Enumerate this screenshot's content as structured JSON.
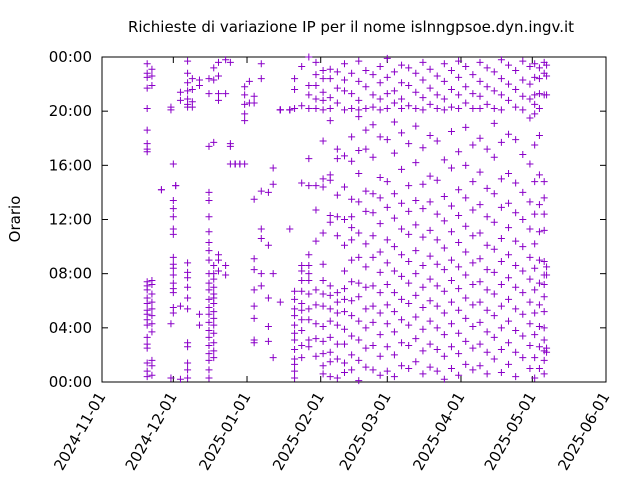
{
  "chart_data": {
    "type": "scatter",
    "title": "Richieste di variazione IP per il nome islnngpsoe.dyn.ingv.it",
    "ylabel": "Orario",
    "xlabel": "",
    "grid": false,
    "legend": "none",
    "marker": "+",
    "color": "#8a00c8",
    "x_axis": {
      "type": "date",
      "range": [
        "2024-11-01",
        "2025-06-01"
      ],
      "ticks": [
        "2024-11-01",
        "2024-12-01",
        "2025-01-01",
        "2025-02-01",
        "2025-03-01",
        "2025-04-01",
        "2025-05-01",
        "2025-06-01"
      ]
    },
    "y_axis": {
      "type": "time_of_day_hours",
      "range": [
        0,
        24
      ],
      "ticks": [
        0,
        4,
        8,
        12,
        16,
        20,
        24
      ],
      "tick_labels": [
        "00:00",
        "04:00",
        "08:00",
        "12:00",
        "16:00",
        "20:00",
        "00:00"
      ]
    },
    "clusters": [
      {
        "x": "2024-11-20",
        "y": [
          23.5,
          22.8,
          22.5,
          21.7,
          20.2,
          18.6,
          17.6,
          17.2,
          17.0,
          7.4,
          7.1,
          6.8,
          6.2,
          5.8,
          5.3,
          5.0,
          4.6,
          4.2,
          3.3,
          2.8,
          2.5,
          1.4,
          0.8,
          0.4
        ]
      },
      {
        "x": "2024-11-22",
        "y": [
          23.1,
          22.6,
          21.9,
          7.5,
          7.2,
          6.5,
          5.9,
          5.4,
          4.9,
          4.3,
          3.7,
          1.6,
          1.2,
          0.5
        ]
      },
      {
        "x": "2024-11-26",
        "y": [
          14.2,
          14.2
        ]
      },
      {
        "x": "2024-11-30",
        "y": [
          20.3,
          20.1,
          4.3,
          0.3
        ]
      },
      {
        "x": "2024-12-01",
        "y": [
          16.1,
          13.4,
          12.8,
          12.2,
          11.3,
          10.9,
          9.2,
          8.7,
          8.4,
          7.9,
          7.3,
          6.9,
          6.6,
          5.5,
          5.1
        ]
      },
      {
        "x": "2024-12-02",
        "y": [
          14.5,
          14.5
        ]
      },
      {
        "x": "2024-12-04",
        "y": [
          21.4,
          20.8,
          5.6,
          0.2
        ]
      },
      {
        "x": "2024-12-07",
        "y": [
          23.7,
          22.8,
          22.1,
          21.5,
          20.9,
          20.5,
          20.3,
          8.8,
          8.1,
          7.7,
          7.0,
          6.2,
          5.4,
          2.9,
          2.6,
          1.4,
          0.9,
          0.3
        ]
      },
      {
        "x": "2024-12-09",
        "y": [
          22.4,
          21.6,
          20.7,
          20.3
        ]
      },
      {
        "x": "2024-12-12",
        "y": [
          22.3,
          21.9,
          5.0,
          4.2
        ]
      },
      {
        "x": "2024-12-16",
        "y": [
          22.4,
          21.3,
          17.4,
          14.0,
          13.4,
          12.2,
          11.1,
          10.3,
          9.7,
          9.0,
          8.0,
          7.3,
          6.8,
          6.1,
          5.5,
          5.0,
          4.4,
          3.8,
          3.3,
          2.7,
          2.1,
          1.6,
          0.9,
          0.3
        ]
      },
      {
        "x": "2024-12-18",
        "y": [
          23.2,
          22.3,
          17.7,
          8.6,
          8.0,
          7.6,
          7.0,
          6.5,
          6.2,
          5.8,
          5.2,
          4.7,
          4.2,
          3.6,
          2.9,
          2.3,
          1.8
        ]
      },
      {
        "x": "2024-12-20",
        "y": [
          23.6,
          22.6,
          21.3,
          20.8,
          9.4,
          9.0,
          8.2
        ]
      },
      {
        "x": "2024-12-23",
        "y": [
          23.8,
          21.3,
          8.6,
          7.9
        ]
      },
      {
        "x": "2024-12-25",
        "y": [
          23.6,
          17.6,
          17.4,
          16.1
        ]
      },
      {
        "x": "2024-12-27",
        "y": [
          16.1,
          16.1,
          16.1,
          16.1
        ]
      },
      {
        "x": "2024-12-29",
        "y": [
          16.1,
          16.1,
          16.1
        ]
      },
      {
        "x": "2024-12-31",
        "y": [
          21.8,
          21.2,
          20.5,
          19.8,
          19.3,
          16.1
        ]
      },
      {
        "x": "2025-01-02",
        "y": [
          22.2,
          20.6
        ]
      },
      {
        "x": "2025-01-04",
        "y": [
          21.1,
          20.6,
          13.5,
          9.1,
          8.3,
          6.8,
          5.6,
          4.7,
          3.1,
          2.9
        ]
      },
      {
        "x": "2025-01-07",
        "y": [
          23.5,
          22.4,
          14.1,
          11.3,
          10.6,
          8.0,
          7.1
        ]
      },
      {
        "x": "2025-01-10",
        "y": [
          14.0,
          10.1,
          6.2,
          4.1,
          3.0
        ]
      },
      {
        "x": "2025-01-12",
        "y": [
          15.8,
          14.6,
          8.0,
          1.8
        ]
      },
      {
        "x": "2025-01-15",
        "y": [
          20.1,
          20.1,
          20.1,
          20.1,
          5.9
        ]
      },
      {
        "x": "2025-01-19",
        "y": [
          20.1,
          20.1,
          20.1,
          11.3
        ]
      },
      {
        "x": "2025-01-21",
        "y": [
          22.4,
          21.6,
          20.2,
          6.7,
          6.1,
          5.4,
          4.9,
          4.2,
          3.6,
          3.1,
          2.4,
          1.7,
          1.3,
          0.8,
          0.3
        ]
      },
      {
        "x": "2025-01-24",
        "y": [
          23.3,
          20.4,
          14.7,
          8.6,
          8.2,
          7.5,
          6.7,
          5.8,
          5.3,
          4.6,
          3.8,
          2.7,
          1.8
        ]
      },
      {
        "x": "2025-01-27",
        "y": [
          24.0,
          21.9,
          21.2,
          20.2,
          16.5,
          14.5,
          9.4,
          8.6,
          8.0,
          7.5,
          6.5,
          5.4,
          4.6,
          3.1,
          2.6
        ]
      },
      {
        "x": "2025-01-30",
        "y": [
          23.6,
          22.7,
          21.9,
          20.9,
          20.2,
          14.5,
          12.7,
          10.4,
          6.8,
          5.7,
          4.3,
          3.2,
          1.9
        ]
      },
      {
        "x": "2025-02-02",
        "y": [
          23.0,
          22.4,
          21.4,
          20.8,
          20.1,
          17.8,
          15.0,
          14.4,
          11.0,
          8.7,
          7.5,
          6.5,
          5.6,
          4.1,
          3.0,
          2.1,
          1.2,
          0.6
        ]
      },
      {
        "x": "2025-02-05",
        "y": [
          23.1,
          22.4,
          21.0,
          20.2,
          19.3,
          15.3,
          14.9,
          12.3,
          11.8,
          7.1,
          6.4,
          5.4,
          4.5,
          3.3,
          2.2,
          1.5,
          0.4
        ]
      },
      {
        "x": "2025-02-08",
        "y": [
          22.9,
          21.7,
          20.6,
          17.2,
          16.5,
          13.8,
          12.2,
          10.8,
          6.6,
          5.9,
          5.1,
          4.2,
          2.8,
          1.7,
          0.3
        ]
      },
      {
        "x": "2025-02-11",
        "y": [
          23.5,
          22.3,
          21.5,
          20.1,
          16.7,
          14.4,
          12.0,
          10.1,
          8.2,
          6.9,
          6.1,
          5.2,
          3.9,
          2.8,
          1.4,
          0.7
        ]
      },
      {
        "x": "2025-02-14",
        "y": [
          22.8,
          21.3,
          20.2,
          18.1,
          16.3,
          13.5,
          12.2,
          11.4,
          10.5,
          9.0,
          7.4,
          6.0,
          4.9,
          3.4,
          2.0,
          0.9
        ]
      },
      {
        "x": "2025-02-17",
        "y": [
          23.7,
          22.2,
          20.8,
          20.1,
          19.6,
          17.1,
          15.4,
          13.3,
          11.0,
          9.2,
          7.3,
          6.3,
          4.5,
          3.1,
          1.6,
          0.1
        ]
      },
      {
        "x": "2025-02-20",
        "y": [
          23.0,
          21.8,
          20.2,
          18.6,
          17.2,
          14.1,
          12.6,
          10.2,
          8.5,
          7.0,
          5.4,
          4.0,
          2.5,
          1.1
        ]
      },
      {
        "x": "2025-02-23",
        "y": [
          22.7,
          21.2,
          20.3,
          19.0,
          16.6,
          13.9,
          12.5,
          10.8,
          9.2,
          7.1,
          5.6,
          4.4,
          2.7,
          0.9
        ]
      },
      {
        "x": "2025-02-26",
        "y": [
          23.3,
          22.1,
          20.9,
          20.1,
          18.1,
          15.1,
          13.6,
          11.7,
          9.6,
          8.1,
          6.6,
          5.1,
          3.5,
          1.9,
          0.5
        ]
      },
      {
        "x": "2025-03-01",
        "y": [
          23.9,
          22.5,
          21.3,
          20.2,
          17.9,
          14.8,
          12.9,
          10.5,
          8.8,
          7.2,
          5.7,
          4.3,
          2.6,
          0.8
        ]
      },
      {
        "x": "2025-03-04",
        "y": [
          22.9,
          21.5,
          20.6,
          19.2,
          16.9,
          13.9,
          12.1,
          10.0,
          8.2,
          6.6,
          5.2,
          3.7,
          2.0,
          0.4
        ]
      },
      {
        "x": "2025-03-07",
        "y": [
          23.4,
          22.1,
          20.9,
          20.2,
          18.4,
          15.7,
          13.2,
          11.3,
          9.4,
          7.8,
          6.1,
          4.6,
          2.9,
          1.2
        ]
      },
      {
        "x": "2025-03-10",
        "y": [
          23.2,
          21.9,
          20.4,
          17.6,
          14.5,
          12.6,
          10.9,
          8.9,
          7.3,
          5.8,
          4.2,
          2.7,
          1.0
        ]
      },
      {
        "x": "2025-03-13",
        "y": [
          22.8,
          21.4,
          20.2,
          18.9,
          16.2,
          13.4,
          11.6,
          9.7,
          8.0,
          6.4,
          4.8,
          3.2,
          1.5
        ]
      },
      {
        "x": "2025-03-16",
        "y": [
          23.6,
          22.3,
          21.0,
          20.1,
          17.3,
          14.6,
          12.8,
          10.7,
          8.6,
          7.0,
          5.5,
          3.9,
          2.3,
          0.6
        ]
      },
      {
        "x": "2025-03-19",
        "y": [
          23.1,
          21.7,
          20.5,
          18.2,
          15.2,
          13.3,
          11.2,
          9.3,
          7.6,
          6.0,
          4.5,
          2.8,
          1.1
        ]
      },
      {
        "x": "2025-03-22",
        "y": [
          22.6,
          21.2,
          20.2,
          17.8,
          14.9,
          12.4,
          10.5,
          8.7,
          7.1,
          5.6,
          4.0,
          2.4,
          0.8
        ]
      },
      {
        "x": "2025-03-25",
        "y": [
          23.5,
          22.2,
          20.9,
          20.1,
          16.4,
          13.7,
          11.9,
          9.9,
          8.3,
          6.7,
          5.1,
          3.5,
          1.9,
          0.2
        ]
      },
      {
        "x": "2025-03-28",
        "y": [
          23.0,
          21.6,
          20.3,
          18.5,
          15.8,
          13.0,
          11.1,
          9.0,
          7.5,
          5.9,
          4.3,
          2.6,
          1.0
        ]
      },
      {
        "x": "2025-03-31",
        "y": [
          23.7,
          22.5,
          21.2,
          20.2,
          17.0,
          14.2,
          12.3,
          10.3,
          8.5,
          6.9,
          5.3,
          3.6,
          2.1,
          0.5
        ]
      },
      {
        "x": "2025-04-03",
        "y": [
          23.3,
          21.8,
          20.6,
          18.8,
          16.0,
          13.6,
          11.5,
          9.6,
          7.9,
          6.2,
          4.7,
          3.0,
          1.3
        ]
      },
      {
        "x": "2025-04-06",
        "y": [
          22.7,
          21.3,
          20.2,
          17.5,
          14.8,
          12.7,
          10.8,
          8.8,
          7.2,
          5.7,
          4.1,
          2.5,
          0.9
        ]
      },
      {
        "x": "2025-04-09",
        "y": [
          23.6,
          22.2,
          21.1,
          20.2,
          18.0,
          15.5,
          13.1,
          11.0,
          9.1,
          7.4,
          5.9,
          4.4,
          2.8,
          1.2
        ]
      },
      {
        "x": "2025-04-12",
        "y": [
          23.2,
          21.8,
          20.5,
          17.2,
          14.3,
          12.2,
          10.1,
          8.3,
          6.8,
          5.3,
          3.7,
          2.2,
          0.6
        ]
      },
      {
        "x": "2025-04-15",
        "y": [
          22.9,
          21.5,
          20.2,
          19.1,
          16.6,
          13.9,
          11.8,
          9.8,
          8.1,
          6.5,
          4.9,
          3.3,
          1.7
        ]
      },
      {
        "x": "2025-04-18",
        "y": [
          23.8,
          22.4,
          21.2,
          20.1,
          17.7,
          15.0,
          12.9,
          10.6,
          8.9,
          7.2,
          5.6,
          4.0,
          2.4,
          0.7
        ]
      },
      {
        "x": "2025-04-21",
        "y": [
          23.4,
          22.0,
          20.8,
          18.3,
          15.4,
          13.2,
          11.4,
          9.4,
          7.7,
          6.1,
          4.5,
          2.9,
          1.3
        ]
      },
      {
        "x": "2025-04-24",
        "y": [
          23.0,
          21.6,
          20.3,
          17.9,
          14.7,
          12.5,
          10.4,
          8.6,
          7.0,
          5.4,
          3.8,
          2.2,
          0.4
        ]
      },
      {
        "x": "2025-04-27",
        "y": [
          23.7,
          22.3,
          21.1,
          20.1,
          16.8,
          14.0,
          12.0,
          10.0,
          8.2,
          6.6,
          5.0,
          3.4,
          1.8
        ]
      },
      {
        "x": "2025-04-30",
        "y": [
          23.3,
          22.0,
          20.9,
          19.5,
          16.1,
          13.3,
          11.3,
          9.2,
          7.6,
          5.9,
          4.3,
          2.7,
          1.0
        ]
      },
      {
        "x": "2025-05-02",
        "y": [
          23.5,
          22.5,
          21.2,
          20.5,
          19.8,
          17.5,
          14.8,
          12.4,
          10.2,
          8.4,
          6.8,
          5.1,
          3.5,
          1.8,
          0.3
        ]
      },
      {
        "x": "2025-05-04",
        "y": [
          23.2,
          22.4,
          21.3,
          20.2,
          18.2,
          15.3,
          13.1,
          11.1,
          9.0,
          7.3,
          5.7,
          4.1,
          2.6,
          1.0
        ]
      },
      {
        "x": "2025-05-06",
        "y": [
          23.6,
          22.8,
          21.2,
          14.8,
          13.6,
          12.4,
          11.2,
          8.9,
          7.9,
          7.2,
          6.3,
          5.2,
          4.0,
          3.1,
          2.3,
          1.6,
          0.6
        ]
      },
      {
        "x": "2025-05-07",
        "y": [
          23.4,
          22.6,
          21.2,
          8.5,
          7.9,
          2.5,
          2.2
        ]
      }
    ]
  }
}
